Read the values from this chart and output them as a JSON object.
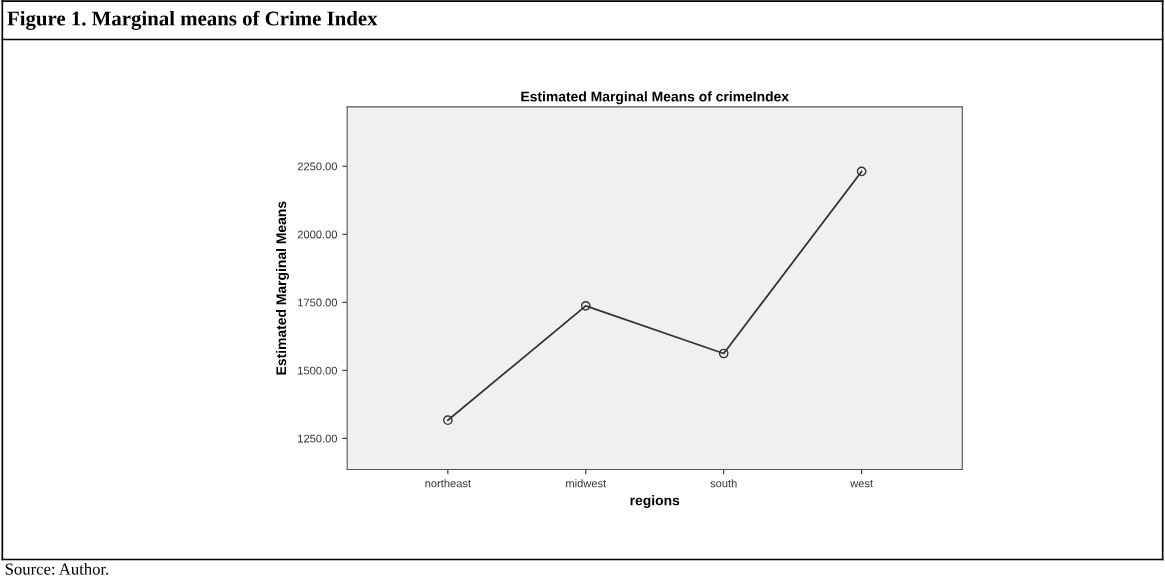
{
  "chart_data": {
    "type": "line",
    "title": "Figure 1. Marginal means of Crime Index",
    "subtitle": "Estimated Marginal Means of crimeIndex",
    "xlabel": "regions",
    "ylabel": "Estimated Marginal Means",
    "categories": [
      "northeast",
      "midwest",
      "south",
      "west"
    ],
    "series": [
      {
        "color": "#333333",
        "values": [
          1317,
          1737,
          1562,
          2231
        ]
      }
    ],
    "ylim": [
      1136,
      2468
    ],
    "yticks": [
      {
        "value": 1250,
        "label": "1250.00"
      },
      {
        "value": 1500,
        "label": "1500.00"
      },
      {
        "value": 1750,
        "label": "1750.00"
      },
      {
        "value": 2000,
        "label": "2000.00"
      },
      {
        "value": 2250,
        "label": "2250.00"
      }
    ],
    "marker": "circle",
    "line_style": "solid",
    "grid": false,
    "legend": false,
    "annotations": [
      "Source: Author."
    ]
  }
}
